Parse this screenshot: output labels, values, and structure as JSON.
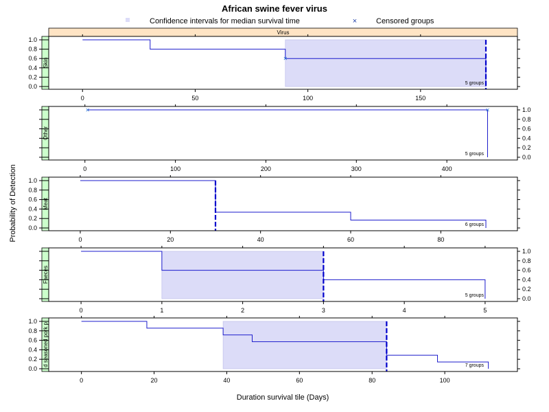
{
  "chart_data": {
    "type": "line",
    "title": "African swine fever virus",
    "legend": {
      "items": [
        {
          "label": "Confidence intervals for median survival time",
          "symbol": "square",
          "color": "#dcdcf8"
        },
        {
          "label": "Censored groups",
          "symbol": "x",
          "color": "#1f3fa8"
        }
      ],
      "placement": "top"
    },
    "top_strip_label": "Virus",
    "xlabel": "Duration survival tile (Days)",
    "ylabel": "Probability of Detection",
    "colors": {
      "line": "#1a1acc",
      "ci_fill": "#dcdcf8",
      "ci_stroke": "#c4c4ec",
      "strip_top": "#ffe4c4",
      "strip_side": "#ccffcc",
      "censor": "#1f6fd0"
    },
    "panels": [
      {
        "name": "Skin",
        "xlim": [
          -15,
          193
        ],
        "x_ticks": [
          0,
          50,
          100,
          150
        ],
        "y_ticks": [
          0.0,
          0.2,
          0.4,
          0.6,
          0.8,
          1.0
        ],
        "y_tick_labels": [
          "0.0",
          "0.2",
          "0.4",
          "0.6",
          "0.8",
          "1.0"
        ],
        "y_labels_side": "left",
        "x_labels_side": "bottom",
        "step_x": [
          0,
          30,
          90,
          179
        ],
        "step_y": [
          1.0,
          0.8,
          0.6,
          0.6
        ],
        "ci": [
          90,
          179
        ],
        "median_line": 179,
        "censored": [
          {
            "x": 90,
            "y": 0.6
          }
        ],
        "groups_label": "5 groups"
      },
      {
        "name": "Other",
        "xlim": [
          -40,
          478
        ],
        "x_ticks": [
          0,
          100,
          200,
          300,
          400
        ],
        "y_ticks": [
          0.0,
          0.2,
          0.4,
          0.6,
          0.8,
          1.0
        ],
        "y_tick_labels": [
          "0.0",
          "0.2",
          "0.4",
          "0.6",
          "0.8",
          "1.0"
        ],
        "y_labels_side": "right",
        "x_labels_side": "bottom",
        "step_x": [
          3,
          445
        ],
        "step_y": [
          1.0,
          1.0
        ],
        "ci": null,
        "median_line": null,
        "censored": [
          {
            "x": 3,
            "y": 1.0
          },
          {
            "x": 445,
            "y": 1.0
          }
        ],
        "groups_label": "5 groups"
      },
      {
        "name": "Meat",
        "xlim": [
          -7,
          97
        ],
        "x_ticks": [
          0,
          20,
          40,
          60,
          80
        ],
        "y_ticks": [
          0.0,
          0.2,
          0.4,
          0.6,
          0.8,
          1.0
        ],
        "y_tick_labels": [
          "0.0",
          "0.2",
          "0.4",
          "0.6",
          "0.8",
          "1.0"
        ],
        "y_labels_side": "left",
        "x_labels_side": "bottom",
        "step_x": [
          0,
          30,
          60,
          90
        ],
        "step_y": [
          1.0,
          0.333,
          0.167,
          0.167
        ],
        "ci": null,
        "median_line": 30,
        "censored": [],
        "groups_label": "6 groups"
      },
      {
        "name": "Faeces",
        "xlim": [
          -0.4,
          5.4
        ],
        "x_ticks": [
          0,
          1,
          2,
          3,
          4,
          5
        ],
        "y_ticks": [
          0.0,
          0.2,
          0.4,
          0.6,
          0.8,
          1.0
        ],
        "y_tick_labels": [
          "0.0",
          "0.2",
          "0.4",
          "0.6",
          "0.8",
          "1.0"
        ],
        "y_labels_side": "right",
        "x_labels_side": "bottom",
        "step_x": [
          0,
          1,
          3,
          5
        ],
        "step_y": [
          1.0,
          0.6,
          0.4,
          0.4
        ],
        "ci": [
          1,
          3
        ],
        "median_line": 3,
        "censored": [],
        "groups_label": "5 groups"
      },
      {
        "name": "d seasoned pork p",
        "xlim": [
          -9,
          120
        ],
        "x_ticks": [
          0,
          20,
          40,
          60,
          80,
          100
        ],
        "y_ticks": [
          0.0,
          0.2,
          0.4,
          0.6,
          0.8,
          1.0
        ],
        "y_tick_labels": [
          "0.0",
          "0.2",
          "0.4",
          "0.6",
          "0.8",
          "1.0"
        ],
        "y_labels_side": "left",
        "x_labels_side": "bottom",
        "step_x": [
          0,
          18,
          39,
          47,
          84,
          98,
          112
        ],
        "step_y": [
          1.0,
          0.857,
          0.714,
          0.571,
          0.286,
          0.143,
          0.143
        ],
        "ci": [
          39,
          84
        ],
        "median_line": 84,
        "censored": [],
        "groups_label": "7 groups"
      }
    ]
  }
}
